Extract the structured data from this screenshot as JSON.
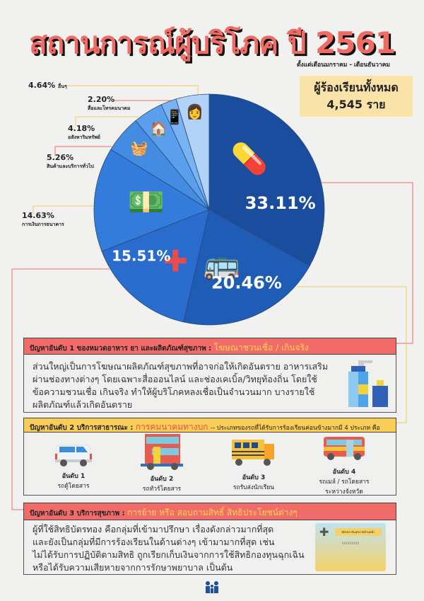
{
  "header": {
    "title": "สถานการณ์ผู้บริโภค ปี 2561",
    "subtitle": "ตั้งแต่เดือนมกราคม - เดือนธันวาคม"
  },
  "total": {
    "label": "ผู้ร้องเรียนทั้งหมด",
    "value": "4,545 ราย"
  },
  "chart_data": {
    "type": "pie",
    "title": "สถานการณ์ผู้บริโภค ปี 2561",
    "start": "top",
    "direction": "clockwise",
    "slices": [
      {
        "label": "",
        "value": 33.11,
        "display": "33.11%",
        "color": "#1a4d9e",
        "icon": "medicine-bottle-icon"
      },
      {
        "label": "",
        "value": 20.46,
        "display": "20.46%",
        "color": "#1f5cb6",
        "icon": "bus-icon"
      },
      {
        "label": "",
        "value": 15.51,
        "display": "15.51%",
        "color": "#2a6ccd",
        "icon": "first-aid-kit-icon"
      },
      {
        "label": "การเงินการธนาคาร",
        "value": 14.63,
        "display": "14.63%",
        "color": "#337cdc",
        "icon": "money-hand-icon"
      },
      {
        "label": "สินค้าและบริการทั่วไป",
        "value": 5.26,
        "display": "5.26%",
        "color": "#438ce2",
        "icon": "produce-crate-icon"
      },
      {
        "label": "อสังหาริมทรัพย์",
        "value": 4.18,
        "display": "4.18%",
        "color": "#5a9fee",
        "icon": "house-icon"
      },
      {
        "label": "สื่อและโทรคมนาคม",
        "value": 2.2,
        "display": "2.20%",
        "color": "#79b3f3",
        "icon": "phone-chat-icon"
      },
      {
        "label": "อื่นๆ",
        "value": 4.64,
        "display": "4.64%",
        "color": "#b3d2f7",
        "icon": "person-icon"
      }
    ]
  },
  "sections": [
    {
      "title": "ปัญหาอันดับ 1 ของหมวดอาหาร ยา และผลิตภัณฑ์สุขภาพ :",
      "highlight": "โฆษณาชวนเชื่อ / เกินจริง",
      "lines": [
        "ส่วนใหญ่เป็นการโฆษณาผลิตภัณฑ์สุขภาพที่อาจก่อให้เกิดอันตราย อาหารเสริม",
        "ผ่านช่องทางต่างๆ โดยเฉพาะสื่อออนไลน์ และช่องเคเบิ้ล/วิทยุท้องถิ่น โดยใช้",
        "ข้อความชวนเชื่อ เกินจริง ทำให้ผู้บริโภคหลงเชื่อเป็นจำนวนมาก บางรายใช้",
        "ผลิตภัณฑ์แล้วเกิดอันตราย"
      ]
    },
    {
      "title": "ปัญหาอันดับ 2 บริการสาธารณะ :",
      "highlight": "การคมนาคมทางบก",
      "rest": "-- ประเภทของรถที่ได้รับการร้องเรียนค่อนข้างมากมี 4 ประเภท คือ",
      "vehicles": [
        {
          "rank": "อันดับ 1",
          "name": "รถตู้โดยสาร",
          "name2": ""
        },
        {
          "rank": "อันดับ 2",
          "name": "รถทัวร์โดยสาร",
          "name2": ""
        },
        {
          "rank": "อันดับ 3",
          "name": "รถรับส่งนักเรียน",
          "name2": ""
        },
        {
          "rank": "อันดับ 4",
          "name": "รถเมล์ / รถโดยสาร",
          "name2": "ระหว่างจังหวัด"
        }
      ]
    },
    {
      "title": "ปัญหาอันดับ 3 บริการสุขภาพ :",
      "highlight": "การย้าย หรือ สอบถามสิทธิ์ สิทธิประโยชน์ต่างๆ",
      "lines": [
        "ผู้ที่ใช้สิทธิบัตรทอง คือกลุ่มที่เข้ามาปรึกษา เรื่องดังกล่าวมากที่สุด",
        "และยังเป็นกลุ่มที่มีการร้องเรียนในด้านต่างๆ เข้ามามากที่สุด เช่น",
        "ไม่ได้รับการปฏิบัติตามสิทธิ ถูกเรียกเก็บเงินจากการใช้สิทธิกองทุนฉุกเฉิน",
        "หรือได้รับความเสียหายจากการรักษาพยาบาล เป็นต้น"
      ],
      "card_title": "บัตรประกันสุขภาพถ้วนหน้า",
      "card_number": "XXXXXXXXX"
    }
  ],
  "footer": {
    "logo": "มพบ"
  }
}
